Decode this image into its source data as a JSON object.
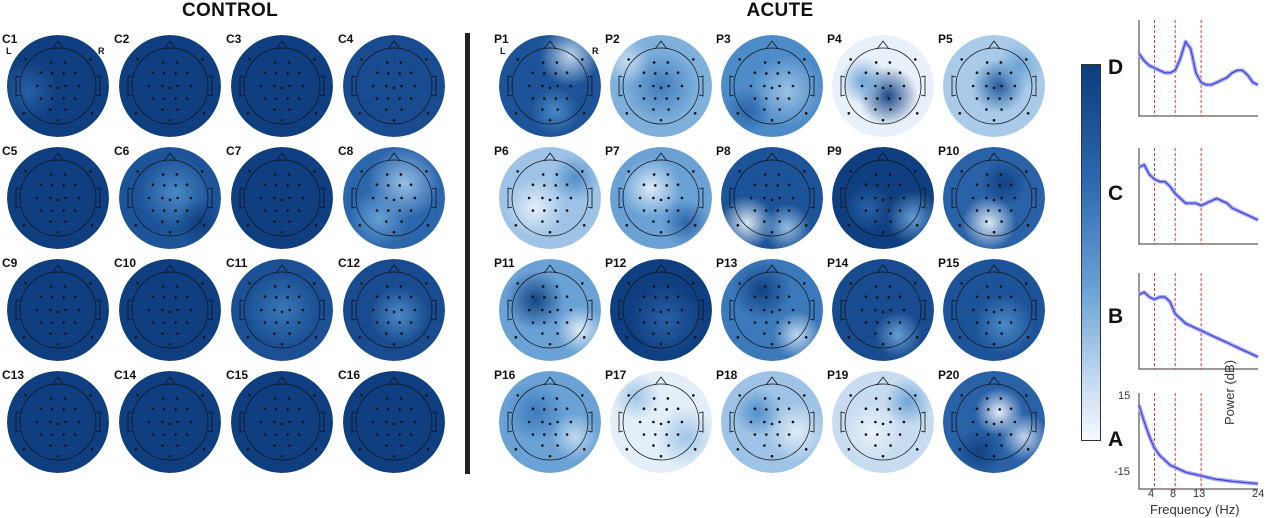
{
  "figure": {
    "control_title": "CONTROL",
    "acute_title": "ACUTE",
    "scalp_left_marker": "L",
    "scalp_right_marker": "R"
  },
  "control_maps": [
    {
      "label": "C1"
    },
    {
      "label": "C2"
    },
    {
      "label": "C3"
    },
    {
      "label": "C4"
    },
    {
      "label": "C5"
    },
    {
      "label": "C6"
    },
    {
      "label": "C7"
    },
    {
      "label": "C8"
    },
    {
      "label": "C9"
    },
    {
      "label": "C10"
    },
    {
      "label": "C11"
    },
    {
      "label": "C12"
    },
    {
      "label": "C13"
    },
    {
      "label": "C14"
    },
    {
      "label": "C15"
    },
    {
      "label": "C16"
    }
  ],
  "acute_maps": [
    {
      "label": "P1"
    },
    {
      "label": "P2"
    },
    {
      "label": "P3"
    },
    {
      "label": "P4"
    },
    {
      "label": "P5"
    },
    {
      "label": "P6"
    },
    {
      "label": "P7"
    },
    {
      "label": "P8"
    },
    {
      "label": "P9"
    },
    {
      "label": "P10"
    },
    {
      "label": "P11"
    },
    {
      "label": "P12"
    },
    {
      "label": "P13"
    },
    {
      "label": "P14"
    },
    {
      "label": "P15"
    },
    {
      "label": "P16"
    },
    {
      "label": "P17"
    },
    {
      "label": "P18"
    },
    {
      "label": "P19"
    },
    {
      "label": "P20"
    }
  ],
  "colorbar": {
    "levels": [
      "D",
      "C",
      "B",
      "A"
    ],
    "top_color": "#0d3c7e",
    "bottom_color": "#f6f9fd"
  },
  "spectra": {
    "panels": [
      "D",
      "C",
      "B",
      "A"
    ],
    "y_ticks": [
      "15",
      "-15"
    ],
    "x_ticks": [
      "4",
      "8",
      "13",
      "24"
    ],
    "xlabel": "Frequency (Hz)",
    "ylabel": "Power (dB)",
    "line_color": "#3a3fd6",
    "band_marker_color": "#e23b2e"
  },
  "chart_data": {
    "type": "line",
    "xlabel": "Frequency (Hz)",
    "ylabel": "Power (dB)",
    "xlim": [
      1,
      24
    ],
    "ylim": [
      -20,
      20
    ],
    "x_ticks": [
      4,
      8,
      13,
      24
    ],
    "y_ticks": [
      15,
      -15
    ],
    "band_markers": [
      4,
      8,
      13
    ],
    "series": [
      {
        "name": "D",
        "x": [
          1,
          2,
          3,
          4,
          5,
          6,
          7,
          8,
          9,
          10,
          11,
          12,
          13,
          14,
          15,
          16,
          17,
          18,
          19,
          20,
          21,
          22,
          23,
          24
        ],
        "y": [
          6,
          3,
          1,
          0,
          -1,
          -2,
          -2,
          -1,
          4,
          11,
          8,
          -2,
          -6,
          -7,
          -7,
          -6,
          -5,
          -4,
          -2,
          -1,
          -1,
          -3,
          -6,
          -7
        ]
      },
      {
        "name": "C",
        "x": [
          1,
          2,
          3,
          4,
          5,
          6,
          7,
          8,
          9,
          10,
          11,
          12,
          13,
          14,
          15,
          16,
          17,
          18,
          19,
          20,
          21,
          22,
          23,
          24
        ],
        "y": [
          12,
          13,
          9,
          7,
          6,
          6,
          4,
          1,
          -1,
          -3,
          -3,
          -3,
          -4,
          -3,
          -2,
          -1,
          -2,
          -3,
          -5,
          -6,
          -7,
          -8,
          -9,
          -10
        ]
      },
      {
        "name": "B",
        "x": [
          1,
          2,
          3,
          4,
          5,
          6,
          7,
          8,
          9,
          10,
          11,
          12,
          13,
          14,
          15,
          16,
          17,
          18,
          19,
          20,
          21,
          22,
          23,
          24
        ],
        "y": [
          11,
          12,
          10,
          9,
          10,
          10,
          8,
          3,
          1,
          -1,
          -2,
          -3,
          -4,
          -5,
          -6,
          -7,
          -8,
          -9,
          -10,
          -11,
          -12,
          -13,
          -14,
          -15
        ]
      },
      {
        "name": "A",
        "x": [
          1,
          2,
          3,
          4,
          5,
          6,
          7,
          8,
          9,
          10,
          11,
          12,
          13,
          14,
          15,
          16,
          17,
          18,
          19,
          20,
          21,
          22,
          23,
          24
        ],
        "y": [
          15,
          8,
          2,
          -3,
          -6,
          -8,
          -10,
          -11,
          -12,
          -13,
          -13.5,
          -14,
          -14.5,
          -15,
          -15.5,
          -16,
          -16.2,
          -16.5,
          -16.8,
          -17,
          -17.2,
          -17.4,
          -17.6,
          -17.8
        ]
      }
    ]
  }
}
